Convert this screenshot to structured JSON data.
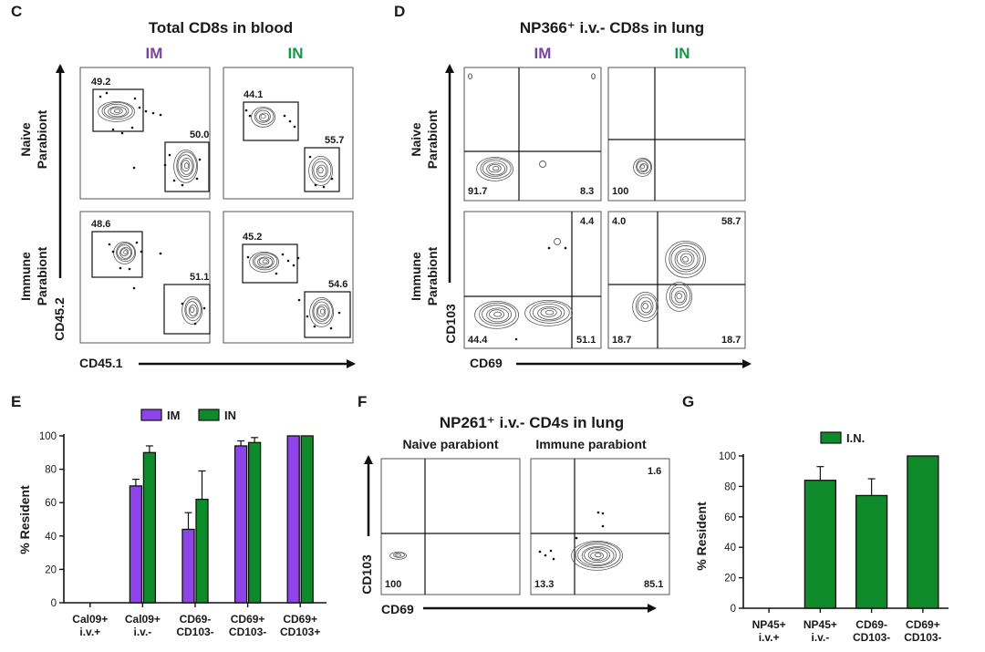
{
  "panel_c": {
    "letter": "C",
    "title": "Total CD8s in blood",
    "col_labels": [
      "IM",
      "IN"
    ],
    "row_labels": [
      [
        "Naive",
        "Parabiont"
      ],
      [
        "Immune",
        "Parabiont"
      ]
    ],
    "x_axis_label": "CD45.1",
    "y_axis_label": "CD45.2",
    "gates": [
      {
        "upper": "49.2",
        "lower": "50.0"
      },
      {
        "upper": "44.1",
        "lower": "55.7"
      },
      {
        "upper": "48.6",
        "lower": "51.1"
      },
      {
        "upper": "45.2",
        "lower": "54.6"
      }
    ]
  },
  "panel_d": {
    "letter": "D",
    "title": "NP366⁺ i.v.- CD8s in lung",
    "col_labels": [
      "IM",
      "IN"
    ],
    "row_labels": [
      [
        "Naive",
        "Parabiont"
      ],
      [
        "Immune",
        "Parabiont"
      ]
    ],
    "x_axis_label": "CD69",
    "y_axis_label": "CD103",
    "quadrants": [
      {
        "ul": "0",
        "ur": "0",
        "ll": "91.7",
        "lr": "8.3"
      },
      {
        "ul": "",
        "ur": "",
        "ll": "100",
        "lr": ""
      },
      {
        "ul": "",
        "ur": "4.4",
        "ll": "44.4",
        "lr": "51.1"
      },
      {
        "ul": "4.0",
        "ur": "58.7",
        "ll": "18.7",
        "lr": "18.7"
      }
    ]
  },
  "panel_e": {
    "letter": "E",
    "chart_data": {
      "type": "bar",
      "categories": [
        [
          "Cal09+",
          "i.v.+"
        ],
        [
          "Cal09+",
          "i.v.-"
        ],
        [
          "CD69-",
          "CD103-"
        ],
        [
          "CD69+",
          "CD103-"
        ],
        [
          "CD69+",
          "CD103+"
        ]
      ],
      "series": [
        {
          "name": "IM",
          "values": [
            0,
            70,
            44,
            94,
            100
          ],
          "errors": [
            0,
            4,
            10,
            3,
            0
          ]
        },
        {
          "name": "IN",
          "values": [
            0,
            90,
            62,
            96,
            100
          ],
          "errors": [
            0,
            4,
            17,
            3,
            0
          ]
        }
      ],
      "ylabel": "% Resident",
      "yticks": [
        0,
        20,
        40,
        60,
        80,
        100
      ],
      "ylim": [
        0,
        100
      ],
      "legend_position": "top"
    }
  },
  "panel_f": {
    "letter": "F",
    "title": "NP261⁺ i.v.- CD4s in lung",
    "col_labels": [
      "Naive parabiont",
      "Immune parabiont"
    ],
    "x_axis_label": "CD69",
    "y_axis_label": "CD103",
    "quadrants": [
      {
        "ul": "",
        "ur": "",
        "ll": "100",
        "lr": ""
      },
      {
        "ul": "",
        "ur": "1.6",
        "ll": "13.3",
        "lr": "85.1"
      }
    ]
  },
  "panel_g": {
    "letter": "G",
    "chart_data": {
      "type": "bar",
      "categories": [
        [
          "NP45+",
          "i.v.+"
        ],
        [
          "NP45+",
          "i.v.-"
        ],
        [
          "CD69-",
          "CD103-"
        ],
        [
          "CD69+",
          "CD103-"
        ]
      ],
      "series": [
        {
          "name": "I.N.",
          "values": [
            0,
            84,
            74,
            100
          ],
          "errors": [
            0,
            9,
            11,
            0
          ]
        }
      ],
      "ylabel": "% Resident",
      "yticks": [
        0,
        20,
        40,
        60,
        80,
        100
      ],
      "ylim": [
        0,
        100
      ],
      "legend_position": "top"
    }
  },
  "colors": {
    "im": "#8e44e8",
    "in": "#0f8a2a",
    "im_label": "#7d3fa0",
    "in_label": "#129a4a",
    "contour": "#555555"
  }
}
